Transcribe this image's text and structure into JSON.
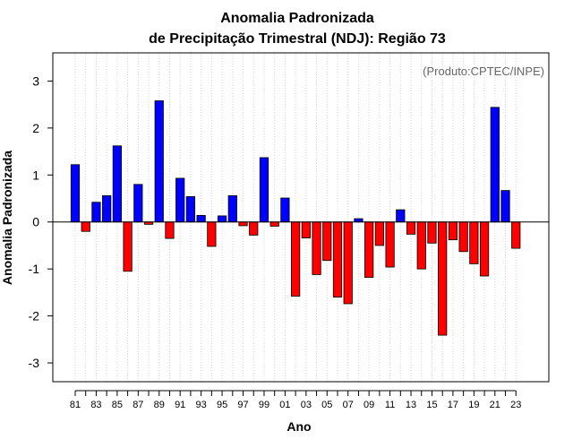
{
  "colors": {
    "positive": "#0000ff",
    "negative": "#ff0000",
    "grid": "#d3d3d3",
    "axis": "#000000",
    "credit": "#666666"
  },
  "chart_data": {
    "type": "bar",
    "title_line1": "Anomalia Padronizada",
    "title_line2": "de Precipitação Trimestral (NDJ): Região 73",
    "xlabel": "Ano",
    "ylabel": "Anomalia Padronizada",
    "credit": "(Produto:CPTEC/INPE)",
    "ylim": [
      -3.4,
      3.6
    ],
    "yticks": [
      3,
      2,
      1,
      0,
      -1,
      -2,
      -3
    ],
    "ytick_labels": [
      "3",
      "2",
      "1",
      "0",
      "-1",
      "-2",
      "-3"
    ],
    "categories": [
      "81",
      "82",
      "83",
      "84",
      "85",
      "86",
      "87",
      "88",
      "89",
      "90",
      "91",
      "92",
      "93",
      "94",
      "95",
      "96",
      "97",
      "98",
      "99",
      "00",
      "01",
      "02",
      "03",
      "04",
      "05",
      "06",
      "07",
      "08",
      "09",
      "10",
      "11",
      "12",
      "13",
      "14",
      "15",
      "16",
      "17",
      "18",
      "19",
      "20",
      "21",
      "22",
      "23"
    ],
    "xtick_labels": [
      "81",
      "83",
      "85",
      "87",
      "89",
      "91",
      "93",
      "95",
      "97",
      "99",
      "01",
      "03",
      "05",
      "07",
      "09",
      "11",
      "13",
      "15",
      "17",
      "19",
      "21",
      "23"
    ],
    "values": [
      1.22,
      -0.2,
      0.42,
      0.56,
      1.62,
      -1.05,
      0.8,
      -0.05,
      2.58,
      -0.35,
      0.93,
      0.54,
      0.14,
      -0.52,
      0.13,
      0.56,
      -0.08,
      -0.28,
      1.37,
      -0.09,
      0.51,
      -1.58,
      -0.34,
      -1.12,
      -0.82,
      -1.6,
      -1.74,
      0.07,
      -1.18,
      -0.5,
      -0.96,
      0.26,
      -0.26,
      -1.0,
      -0.45,
      -2.41,
      -0.38,
      -0.63,
      -0.89,
      -1.15,
      2.44,
      0.67,
      -0.56
    ]
  }
}
